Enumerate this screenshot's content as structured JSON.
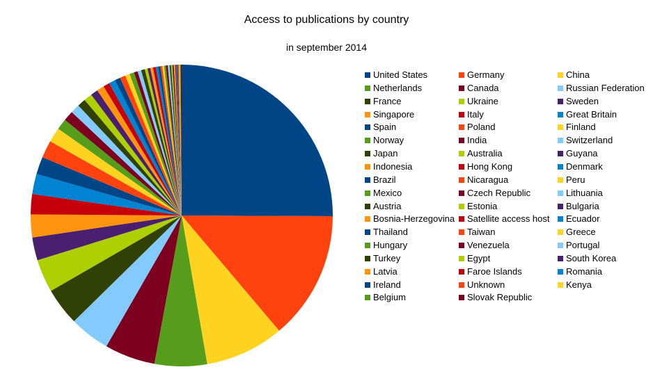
{
  "chart_data": {
    "type": "pie",
    "title": "Access to publications by country",
    "subtitle": "in september 2014",
    "legend_position": "right",
    "start_angle": "12 o'clock, clockwise",
    "slices": [
      {
        "label": "United States",
        "value": 25.5,
        "color": "#004586"
      },
      {
        "label": "Germany",
        "value": 14.0,
        "color": "#ff420e"
      },
      {
        "label": "China",
        "value": 8.6,
        "color": "#ffd320"
      },
      {
        "label": "Netherlands",
        "value": 5.7,
        "color": "#579d1c"
      },
      {
        "label": "Canada",
        "value": 5.5,
        "color": "#7e0021"
      },
      {
        "label": "Russian Federation",
        "value": 4.4,
        "color": "#83caff"
      },
      {
        "label": "France",
        "value": 4.1,
        "color": "#314004"
      },
      {
        "label": "Ukraine",
        "value": 3.6,
        "color": "#aecf00"
      },
      {
        "label": "Sweden",
        "value": 2.5,
        "color": "#4b1f6f"
      },
      {
        "label": "Singapore",
        "value": 2.5,
        "color": "#ff950e"
      },
      {
        "label": "Italy",
        "value": 2.2,
        "color": "#c5000b"
      },
      {
        "label": "Great Britain",
        "value": 2.2,
        "color": "#0084d1"
      },
      {
        "label": "Spain",
        "value": 1.9,
        "color": "#004586"
      },
      {
        "label": "Poland",
        "value": 1.9,
        "color": "#ff420e"
      },
      {
        "label": "Finland",
        "value": 1.6,
        "color": "#ffd320"
      },
      {
        "label": "Norway",
        "value": 1.2,
        "color": "#579d1c"
      },
      {
        "label": "India",
        "value": 1.1,
        "color": "#7e0021"
      },
      {
        "label": "Switzerland",
        "value": 1.0,
        "color": "#83caff"
      },
      {
        "label": "Japan",
        "value": 0.9,
        "color": "#314004"
      },
      {
        "label": "Australia",
        "value": 0.9,
        "color": "#aecf00"
      },
      {
        "label": "Guyana",
        "value": 0.8,
        "color": "#4b1f6f"
      },
      {
        "label": "Indonesia",
        "value": 0.8,
        "color": "#ff950e"
      },
      {
        "label": "Hong Kong",
        "value": 0.7,
        "color": "#c5000b"
      },
      {
        "label": "Denmark",
        "value": 0.7,
        "color": "#0084d1"
      },
      {
        "label": "Brazil",
        "value": 0.6,
        "color": "#004586"
      },
      {
        "label": "Nicaragua",
        "value": 0.6,
        "color": "#ff420e"
      },
      {
        "label": "Peru",
        "value": 0.5,
        "color": "#ffd320"
      },
      {
        "label": "Mexico",
        "value": 0.5,
        "color": "#579d1c"
      },
      {
        "label": "Czech Republic",
        "value": 0.4,
        "color": "#7e0021"
      },
      {
        "label": "Lithuania",
        "value": 0.4,
        "color": "#83caff"
      },
      {
        "label": "Austria",
        "value": 0.4,
        "color": "#314004"
      },
      {
        "label": "Estonia",
        "value": 0.3,
        "color": "#aecf00"
      },
      {
        "label": "Bulgaria",
        "value": 0.3,
        "color": "#4b1f6f"
      },
      {
        "label": "Bosnia-Herzegovina",
        "value": 0.3,
        "color": "#ff950e"
      },
      {
        "label": "Satellite access host",
        "value": 0.3,
        "color": "#c5000b"
      },
      {
        "label": "Ecuador",
        "value": 0.25,
        "color": "#0084d1"
      },
      {
        "label": "Thailand",
        "value": 0.25,
        "color": "#004586"
      },
      {
        "label": "Taiwan",
        "value": 0.2,
        "color": "#ff420e"
      },
      {
        "label": "Greece",
        "value": 0.2,
        "color": "#ffd320"
      },
      {
        "label": "Hungary",
        "value": 0.2,
        "color": "#579d1c"
      },
      {
        "label": "Venezuela",
        "value": 0.2,
        "color": "#7e0021"
      },
      {
        "label": "Portugal",
        "value": 0.2,
        "color": "#83caff"
      },
      {
        "label": "Turkey",
        "value": 0.15,
        "color": "#314004"
      },
      {
        "label": "Egypt",
        "value": 0.15,
        "color": "#aecf00"
      },
      {
        "label": "South Korea",
        "value": 0.15,
        "color": "#4b1f6f"
      },
      {
        "label": "Latvia",
        "value": 0.15,
        "color": "#ff950e"
      },
      {
        "label": "Faroe Islands",
        "value": 0.1,
        "color": "#c5000b"
      },
      {
        "label": "Romania",
        "value": 0.1,
        "color": "#0084d1"
      },
      {
        "label": "Ireland",
        "value": 0.1,
        "color": "#004586"
      },
      {
        "label": "Unknown",
        "value": 0.1,
        "color": "#ff420e"
      },
      {
        "label": "Kenya",
        "value": 0.1,
        "color": "#ffd320"
      },
      {
        "label": "Belgium",
        "value": 0.1,
        "color": "#579d1c"
      },
      {
        "label": "Slovak Republic",
        "value": 0.1,
        "color": "#7e0021"
      }
    ]
  }
}
